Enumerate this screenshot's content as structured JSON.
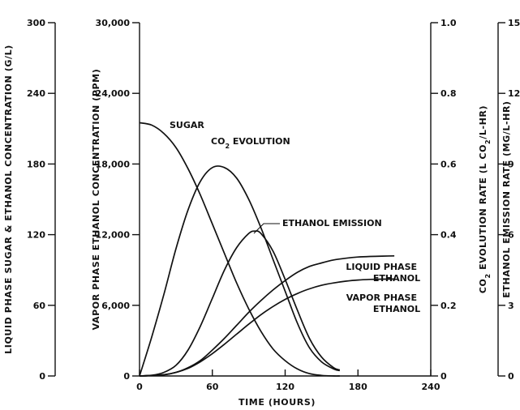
{
  "chart_data": {
    "type": "line",
    "xlabel": "TIME (HOURS)",
    "x_ticks": [
      "0",
      "60",
      "120",
      "180",
      "240"
    ],
    "xlim": [
      0,
      240
    ],
    "grid": false,
    "axes": [
      {
        "id": "sugar",
        "title": "LIQUID PHASE SUGAR & ETHANOL CONCENTRATION (G/L)",
        "range": [
          0,
          300
        ],
        "ticks": [
          "0",
          "60",
          "120",
          "180",
          "240",
          "300"
        ]
      },
      {
        "id": "vapor",
        "title": "VAPOR PHASE ETHANOL CONCENTRATION (PPM)",
        "range": [
          0,
          30000
        ],
        "ticks": [
          "0",
          "6,000",
          "12,000",
          "18,000",
          "24,000",
          "30,000"
        ]
      },
      {
        "id": "co2",
        "title_parts": [
          "CO",
          "2",
          " EVOLUTION RATE (L CO",
          "2",
          "/L-HR)"
        ],
        "range": [
          0,
          1.0
        ],
        "ticks": [
          "0",
          "0.2",
          "0.4",
          "0.6",
          "0.8",
          "1.0"
        ]
      },
      {
        "id": "emission",
        "title": "ETHANOL EMISSION RATE (MG/L-HR)",
        "range": [
          0,
          15
        ],
        "ticks": [
          "0",
          "3",
          "6",
          "9",
          "12",
          "15"
        ]
      }
    ],
    "series": [
      {
        "name": "SUGAR",
        "axis": "sugar",
        "x": [
          0,
          10,
          20,
          30,
          40,
          50,
          60,
          70,
          80,
          90,
          100,
          110,
          120,
          130,
          140,
          150,
          160,
          165
        ],
        "y": [
          215,
          213,
          206,
          194,
          176,
          154,
          129,
          104,
          79,
          57,
          38,
          23,
          13,
          6,
          2,
          0.5,
          0,
          0
        ]
      },
      {
        "name": "CO",
        "name_sub": "2",
        "name_suffix": " EVOLUTION",
        "axis": "co2",
        "x": [
          0,
          10,
          20,
          30,
          40,
          50,
          60,
          70,
          80,
          90,
          100,
          110,
          120,
          130,
          140,
          150,
          160,
          165
        ],
        "y": [
          0,
          0.11,
          0.23,
          0.36,
          0.47,
          0.55,
          0.59,
          0.59,
          0.56,
          0.5,
          0.42,
          0.33,
          0.24,
          0.15,
          0.08,
          0.04,
          0.02,
          0.015
        ]
      },
      {
        "name": "ETHANOL EMISSION",
        "axis": "emission",
        "x": [
          0,
          10,
          20,
          30,
          40,
          50,
          60,
          70,
          80,
          90,
          95,
          100,
          110,
          120,
          130,
          140,
          150,
          160,
          165
        ],
        "y": [
          0,
          0.03,
          0.15,
          0.45,
          1.1,
          2.1,
          3.3,
          4.5,
          5.45,
          6.05,
          6.15,
          6.05,
          5.3,
          4.1,
          2.8,
          1.6,
          0.8,
          0.35,
          0.25
        ]
      },
      {
        "name": "LIQUID PHASE ETHANOL",
        "axis": "sugar",
        "x": [
          0,
          20,
          30,
          40,
          50,
          60,
          70,
          80,
          90,
          100,
          110,
          120,
          130,
          140,
          150,
          160,
          170,
          180,
          190,
          200,
          210
        ],
        "y": [
          0,
          1,
          3,
          7,
          13,
          22,
          32,
          43,
          54,
          64,
          73,
          81,
          88,
          93,
          96,
          98.5,
          100,
          101,
          101.5,
          101.8,
          102
        ]
      },
      {
        "name": "VAPOR PHASE ETHANOL",
        "axis": "vapor",
        "x": [
          0,
          20,
          30,
          40,
          50,
          60,
          70,
          80,
          90,
          100,
          110,
          120,
          130,
          140,
          150,
          160,
          170,
          180,
          190,
          200,
          210
        ],
        "y": [
          0,
          100,
          300,
          650,
          1200,
          1900,
          2700,
          3550,
          4400,
          5200,
          5900,
          6500,
          7000,
          7400,
          7700,
          7900,
          8050,
          8150,
          8200,
          8220,
          8230
        ]
      }
    ],
    "annotations": [
      "SUGAR",
      "CO2 EVOLUTION",
      "ETHANOL EMISSION",
      "LIQUID PHASE ETHANOL",
      "VAPOR PHASE ETHANOL"
    ],
    "curve_labels": {
      "sugar": "SUGAR",
      "ethanol_emission": "ETHANOL EMISSION",
      "liquid_line1": "LIQUID PHASE",
      "liquid_line2": "ETHANOL",
      "vapor_line1": "VAPOR PHASE",
      "vapor_line2": "ETHANOL"
    }
  }
}
